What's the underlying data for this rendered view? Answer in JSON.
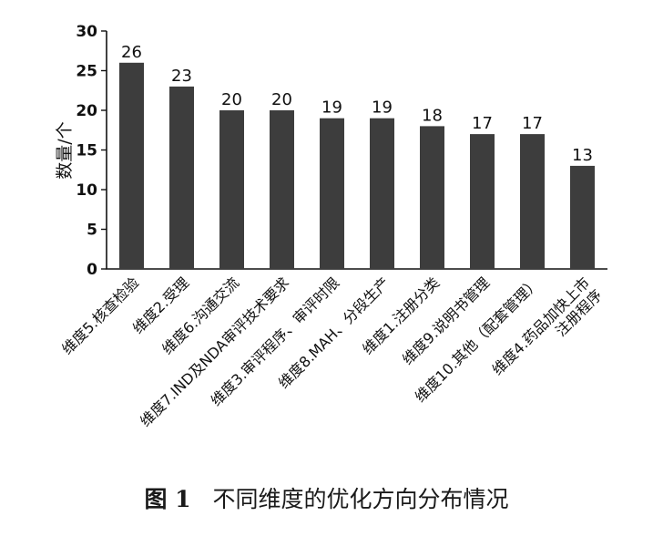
{
  "chart_data": {
    "type": "bar",
    "categories": [
      "维度5.核查检验",
      "维度2.受理",
      "维度6.沟通交流",
      "维度7.IND及NDA审评技术要求",
      "维度3.审评程序、审评时限",
      "维度8.MAH、分段生产",
      "维度1.注册分类",
      "维度9.说明书管理",
      "维度10.其他（配套管理）",
      "维度4.药品加快上市注册程序"
    ],
    "category_lines": [
      [
        "维度5.核查检验"
      ],
      [
        "维度2.受理"
      ],
      [
        "维度6.沟通交流"
      ],
      [
        "维度7.IND及NDA审评技术要求"
      ],
      [
        "维度3.审评程序、审评时限"
      ],
      [
        "维度8.MAH、分段生产"
      ],
      [
        "维度1.注册分类"
      ],
      [
        "维度9.说明书管理"
      ],
      [
        "维度10.其他（配套管理）"
      ],
      [
        "维度4.药品加快上市",
        "注册程序"
      ]
    ],
    "values": [
      26,
      23,
      20,
      20,
      19,
      19,
      18,
      17,
      17,
      13
    ],
    "ylabel": "数量/个",
    "ylim": [
      0,
      30
    ],
    "yticks": [
      0,
      5,
      10,
      15,
      20,
      25,
      30
    ],
    "grid": false,
    "bar_color": "#3d3d3d"
  },
  "caption": {
    "number": "图 1",
    "text": "不同维度的优化方向分布情况"
  }
}
